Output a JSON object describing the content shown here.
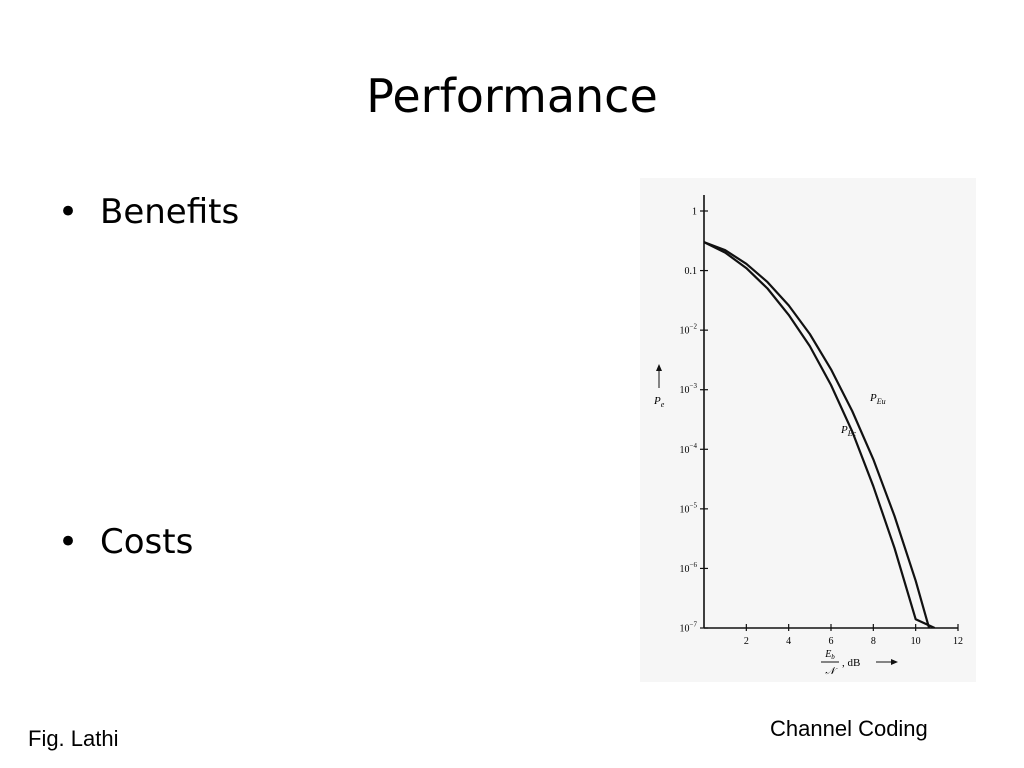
{
  "slide": {
    "title": "Performance",
    "bullets": [
      "Benefits",
      "Costs"
    ],
    "footer_left": "Fig. Lathi",
    "footer_right": "Channel Coding"
  },
  "chart_data": {
    "type": "line",
    "y_scale": "log",
    "xlim": [
      0,
      12
    ],
    "ylim": [
      1e-07,
      1
    ],
    "x_ticks": [
      "2",
      "4",
      "6",
      "8",
      "10",
      "12"
    ],
    "x_tick_values": [
      2,
      4,
      6,
      8,
      10,
      12
    ],
    "y_ticks": [
      {
        "value": 1,
        "base": "1",
        "exp": ""
      },
      {
        "value": 0.1,
        "base": "0.1",
        "exp": ""
      },
      {
        "value": 0.01,
        "base": "10",
        "exp": "−2"
      },
      {
        "value": 0.001,
        "base": "10",
        "exp": "−3"
      },
      {
        "value": 0.0001,
        "base": "10",
        "exp": "−4"
      },
      {
        "value": 1e-05,
        "base": "10",
        "exp": "−5"
      },
      {
        "value": 1e-06,
        "base": "10",
        "exp": "−6"
      },
      {
        "value": 1e-07,
        "base": "10",
        "exp": "−7"
      }
    ],
    "ylabel": {
      "main": "P",
      "sub": "e"
    },
    "xlabel": {
      "num": "E",
      "num_sub": "b",
      "den": "𝒩",
      "unit": ", dB"
    },
    "series": [
      {
        "name": "P",
        "name_sub": "Eu",
        "x": [
          0,
          1,
          2,
          3,
          4,
          5,
          6,
          7,
          8,
          9,
          10,
          11,
          11.6
        ],
        "y": [
          0.3,
          0.22,
          0.13,
          0.064,
          0.026,
          0.0086,
          0.0022,
          0.00044,
          6.8e-05,
          7.6e-06,
          6.2e-07,
          3.5e-08,
          1e-07
        ]
      },
      {
        "name": "P",
        "name_sub": "Ec",
        "x": [
          0,
          1,
          2,
          3,
          4,
          5,
          6,
          7,
          8,
          9,
          10,
          10.9
        ],
        "y": [
          0.3,
          0.2,
          0.11,
          0.05,
          0.018,
          0.0054,
          0.0012,
          0.0002,
          2.4e-05,
          2.2e-06,
          1.4e-07,
          1e-07
        ]
      }
    ]
  }
}
